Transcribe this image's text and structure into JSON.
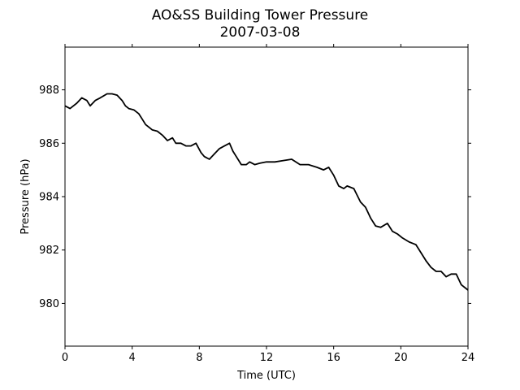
{
  "chart_data": {
    "type": "line",
    "title": "AO&SS Building Tower Pressure",
    "subtitle": "2007-03-08",
    "xlabel": "Time (UTC)",
    "ylabel": "Pressure (hPa)",
    "xlim": [
      0,
      24
    ],
    "ylim": [
      978.4,
      989.6
    ],
    "xticks": [
      0,
      4,
      8,
      12,
      16,
      20,
      24
    ],
    "yticks": [
      980,
      982,
      984,
      986,
      988
    ],
    "grid": false,
    "line_color": "#000000",
    "series": [
      {
        "x": [
          0.0,
          0.3,
          0.7,
          1.0,
          1.3,
          1.5,
          1.8,
          2.1,
          2.5,
          2.8,
          3.1,
          3.4,
          3.6,
          3.8,
          4.1,
          4.4,
          4.6,
          4.8,
          5.0,
          5.2,
          5.5,
          5.8,
          6.1,
          6.4,
          6.6,
          6.9,
          7.2,
          7.5,
          7.8,
          8.1,
          8.3,
          8.6,
          8.9,
          9.2,
          9.5,
          9.8,
          10.0,
          10.2,
          10.5,
          10.8,
          11.0,
          11.3,
          11.6,
          12.0,
          12.5,
          13.0,
          13.5,
          14.0,
          14.5,
          15.0,
          15.4,
          15.7,
          16.0,
          16.3,
          16.6,
          16.8,
          17.2,
          17.6,
          17.9,
          18.2,
          18.5,
          18.8,
          19.2,
          19.5,
          19.8,
          20.1,
          20.5,
          20.9,
          21.2,
          21.5,
          21.8,
          22.1,
          22.4,
          22.7,
          23.0,
          23.3,
          23.6,
          24.0
        ],
        "values": [
          987.4,
          987.3,
          987.5,
          987.7,
          987.6,
          987.4,
          987.6,
          987.7,
          987.85,
          987.85,
          987.8,
          987.6,
          987.4,
          987.3,
          987.25,
          987.1,
          986.9,
          986.7,
          986.6,
          986.5,
          986.45,
          986.3,
          986.1,
          986.2,
          986.0,
          986.0,
          985.9,
          985.9,
          986.0,
          985.65,
          985.5,
          985.4,
          985.6,
          985.8,
          985.9,
          986.0,
          985.7,
          985.5,
          985.2,
          985.2,
          985.3,
          985.2,
          985.25,
          985.3,
          985.3,
          985.35,
          985.4,
          985.2,
          985.2,
          985.1,
          985.0,
          985.1,
          984.8,
          984.4,
          984.3,
          984.4,
          984.3,
          983.8,
          983.6,
          983.2,
          982.9,
          982.85,
          983.0,
          982.7,
          982.6,
          982.45,
          982.3,
          982.2,
          981.9,
          981.6,
          981.35,
          981.2,
          981.2,
          981.0,
          981.1,
          981.1,
          980.7,
          980.5
        ]
      }
    ]
  }
}
